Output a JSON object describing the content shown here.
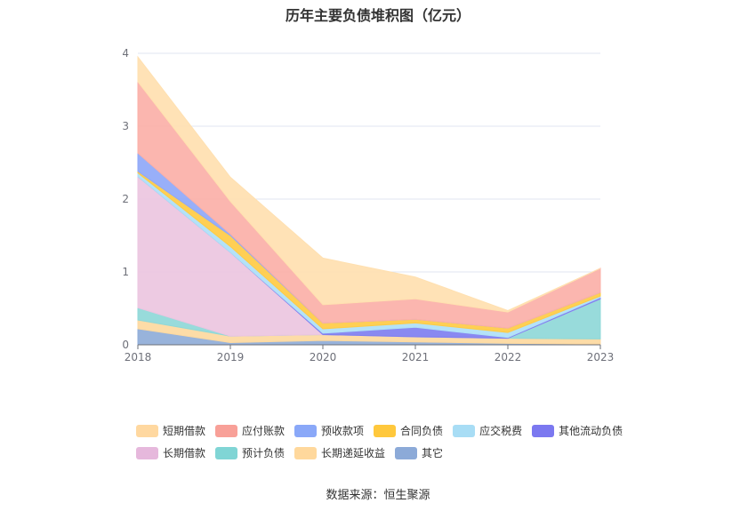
{
  "chart_data": {
    "type": "area",
    "stacked": true,
    "title": "历年主要负债堆积图（亿元）",
    "x": [
      "2018",
      "2019",
      "2020",
      "2021",
      "2022",
      "2023"
    ],
    "ylim": [
      0,
      4
    ],
    "yticks": [
      "0",
      "1",
      "2",
      "3",
      "4"
    ],
    "grid": true,
    "legend_position": "bottom",
    "series": [
      {
        "name": "其它",
        "color": "#8facd8",
        "values": [
          0.22,
          0.03,
          0.06,
          0.04,
          0.02,
          0.01
        ]
      },
      {
        "name": "长期递延收益",
        "color": "#fdd9a0",
        "values": [
          0.12,
          0.09,
          0.08,
          0.07,
          0.07,
          0.07
        ]
      },
      {
        "name": "预计负债",
        "color": "#8fd8d8",
        "values": [
          0.17,
          0.0,
          0.0,
          0.0,
          0.0,
          0.55
        ]
      },
      {
        "name": "长期借款",
        "color": "#ebc5e0",
        "values": [
          1.8,
          1.15,
          0.0,
          0.0,
          0.0,
          0.0
        ]
      },
      {
        "name": "其他流动负债",
        "color": "#7f7ff0",
        "values": [
          0.0,
          0.0,
          0.02,
          0.13,
          0.01,
          0.02
        ]
      },
      {
        "name": "应交税费",
        "color": "#aee0f7",
        "values": [
          0.05,
          0.08,
          0.06,
          0.06,
          0.07,
          0.02
        ]
      },
      {
        "name": "合同负债",
        "color": "#ffcb45",
        "values": [
          0.02,
          0.15,
          0.08,
          0.05,
          0.06,
          0.05
        ]
      },
      {
        "name": "预收款项",
        "color": "#8fa8f8",
        "values": [
          0.25,
          0.02,
          0.0,
          0.0,
          0.0,
          0.0
        ]
      },
      {
        "name": "应付账款",
        "color": "#fbb0a8",
        "values": [
          0.98,
          0.45,
          0.25,
          0.28,
          0.22,
          0.33
        ]
      },
      {
        "name": "短期借款",
        "color": "#ffe0b0",
        "values": [
          0.34,
          0.33,
          0.64,
          0.3,
          0.02,
          0.0
        ]
      }
    ]
  },
  "legend": {
    "row1": [
      "短期借款",
      "应付账款",
      "预收款项",
      "合同负债",
      "应交税费",
      "其他流动负债"
    ],
    "row2": [
      "长期借款",
      "预计负债",
      "长期递延收益",
      "其它"
    ],
    "colors": {
      "短期借款": "#ffd8a0",
      "应付账款": "#f8a098",
      "预收款项": "#8aa8f8",
      "合同负债": "#ffc83c",
      "应交税费": "#a8ddf5",
      "其他流动负债": "#7b78f0",
      "长期借款": "#e6b8dc",
      "预计负债": "#80d5d5",
      "长期递延收益": "#ffd89c",
      "其它": "#8caad8"
    }
  },
  "source": "数据来源：恒生聚源"
}
